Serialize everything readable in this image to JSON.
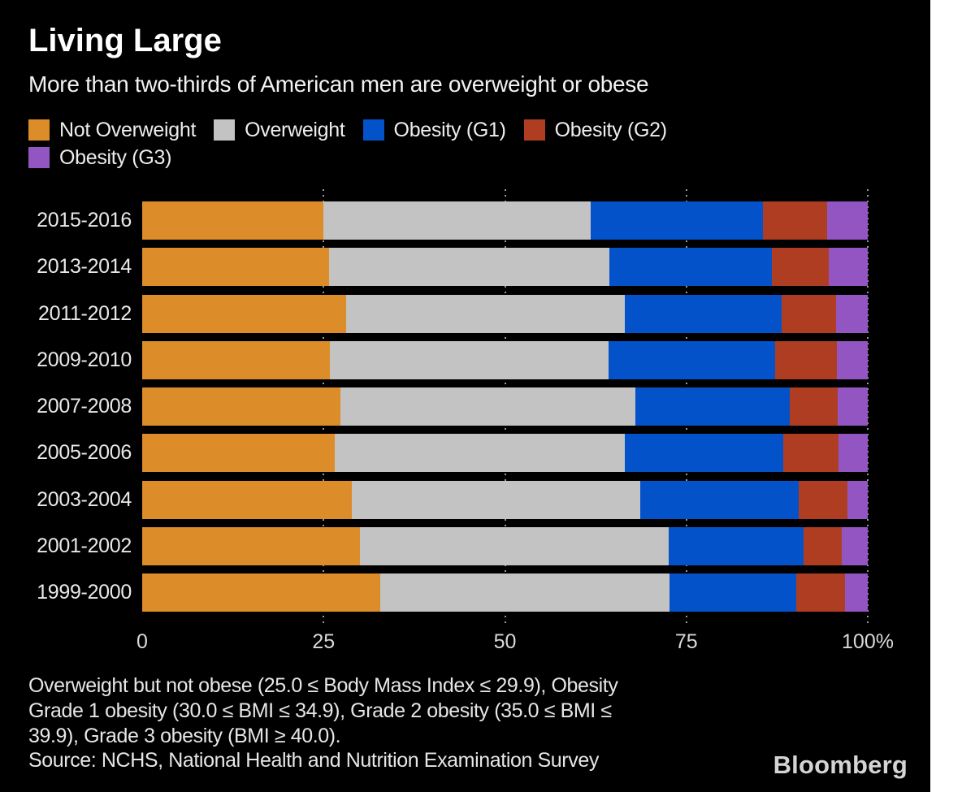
{
  "title": "Living Large",
  "subtitle": "More than two-thirds of American men are overweight or obese",
  "brand": "Bloomberg",
  "colors": {
    "background": "#000000",
    "page_strip": "#ffffff",
    "not_overweight": "#dd8c2a",
    "overweight": "#c3c3c3",
    "obesity_g1": "#0452c9",
    "obesity_g2": "#af3d22",
    "obesity_g3": "#9355c2",
    "gridline": "#9a9a9a",
    "text": "#ffffff"
  },
  "legend": {
    "rows": [
      [
        {
          "key": "not-overweight",
          "label": "Not Overweight",
          "color": "#dd8c2a"
        },
        {
          "key": "overweight",
          "label": "Overweight",
          "color": "#c3c3c3"
        },
        {
          "key": "obesity-g1",
          "label": "Obesity (G1)",
          "color": "#0452c9"
        },
        {
          "key": "obesity-g2",
          "label": "Obesity (G2)",
          "color": "#af3d22"
        }
      ],
      [
        {
          "key": "obesity-g3",
          "label": "Obesity (G3)",
          "color": "#9355c2"
        }
      ]
    ]
  },
  "chart_data": {
    "type": "bar",
    "orientation": "horizontal_stacked",
    "units": "percent",
    "categories": [
      "2015-2016",
      "2013-2014",
      "2011-2012",
      "2009-2010",
      "2007-2008",
      "2005-2006",
      "2003-2004",
      "2001-2002",
      "1999-2000"
    ],
    "series": [
      {
        "key": "not-overweight",
        "name": "Not Overweight",
        "color": "#dd8c2a",
        "values": [
          25.0,
          25.8,
          28.1,
          25.9,
          27.3,
          26.5,
          28.9,
          30.0,
          32.8
        ]
      },
      {
        "key": "overweight",
        "name": "Overweight",
        "color": "#c3c3c3",
        "values": [
          36.8,
          38.6,
          38.4,
          38.4,
          40.7,
          40.0,
          39.7,
          42.6,
          39.9
        ]
      },
      {
        "key": "obesity-g1",
        "name": "Obesity (G1)",
        "color": "#0452c9",
        "values": [
          23.8,
          22.4,
          21.6,
          22.9,
          21.2,
          21.9,
          21.9,
          18.6,
          17.4
        ]
      },
      {
        "key": "obesity-g2",
        "name": "Obesity (G2)",
        "color": "#af3d22",
        "values": [
          8.8,
          7.8,
          7.5,
          8.5,
          6.7,
          7.6,
          6.7,
          5.2,
          6.8
        ]
      },
      {
        "key": "obesity-g3",
        "name": "Obesity (G3)",
        "color": "#9355c2",
        "values": [
          5.6,
          5.4,
          4.4,
          4.3,
          4.1,
          4.0,
          2.8,
          3.6,
          3.1
        ]
      }
    ],
    "xlim": [
      0,
      100
    ],
    "x_ticks": [
      {
        "value": 0,
        "label": "0"
      },
      {
        "value": 25,
        "label": "25"
      },
      {
        "value": 50,
        "label": "50"
      },
      {
        "value": 75,
        "label": "75"
      },
      {
        "value": 100,
        "label": "100%"
      }
    ],
    "gridlines": [
      25,
      50,
      75,
      100
    ],
    "grid": "dotted-vertical",
    "legend_position": "top"
  },
  "footnote_lines": [
    "Overweight but not obese (25.0 ≤ Body Mass Index ≤ 29.9), Obesity",
    "Grade 1 obesity (30.0 ≤ BMI ≤ 34.9), Grade 2 obesity (35.0 ≤ BMI ≤",
    "39.9), Grade 3 obesity (BMI ≥ 40.0)."
  ],
  "source": "Source: NCHS, National Health and Nutrition Examination Survey"
}
